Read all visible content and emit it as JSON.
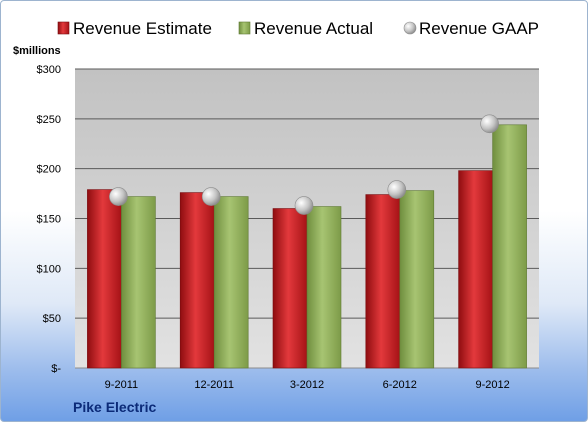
{
  "chart_data": {
    "type": "bar",
    "ylabel": "$millions",
    "company": "Pike Electric",
    "categories": [
      "9-2011",
      "12-2011",
      "3-2012",
      "6-2012",
      "9-2012"
    ],
    "series": [
      {
        "name": "Revenue Estimate",
        "kind": "bar",
        "color": "#c8161d",
        "values": [
          179,
          176,
          160,
          174,
          198
        ]
      },
      {
        "name": "Revenue Actual",
        "kind": "bar",
        "color": "#8aab55",
        "values": [
          172,
          172,
          162,
          178,
          244
        ]
      },
      {
        "name": "Revenue GAAP",
        "kind": "marker",
        "color": "#b8b8b8",
        "values": [
          172,
          172,
          163,
          179,
          245
        ]
      }
    ],
    "ylim": [
      0,
      300
    ],
    "yticks": [
      0,
      50,
      100,
      150,
      200,
      250,
      300
    ],
    "ytick_labels": [
      "$-",
      "$50",
      "$100",
      "$150",
      "$200",
      "$250",
      "$300"
    ],
    "grid": true,
    "legend": "top"
  }
}
